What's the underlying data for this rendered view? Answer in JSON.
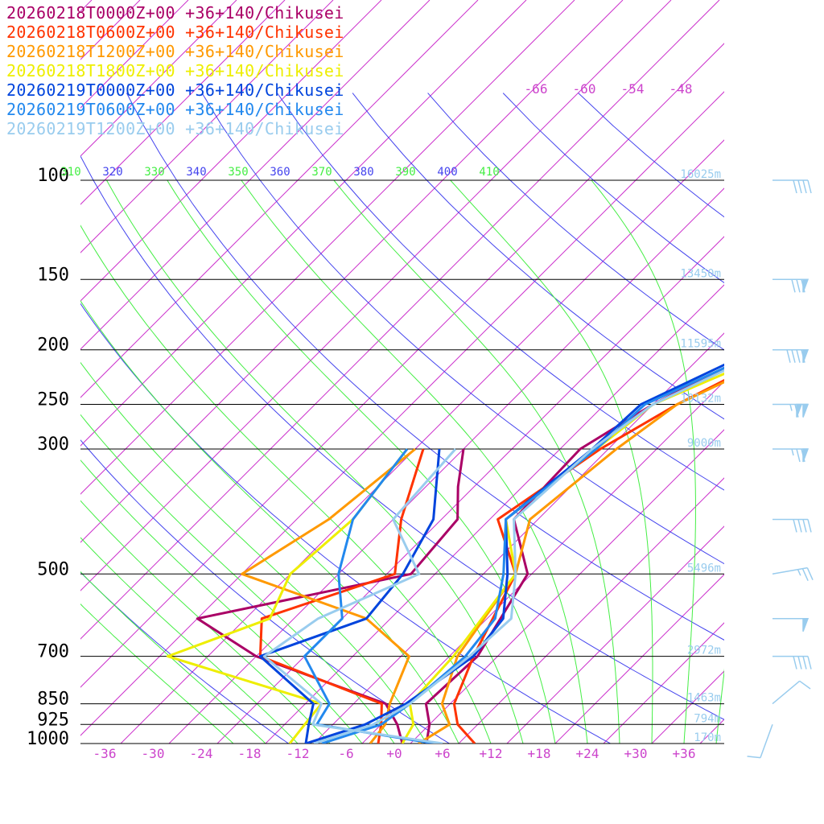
{
  "chart_data": {
    "type": "line",
    "subtype": "skew-t log-p sounding",
    "title": "",
    "xlabel": "",
    "ylabel": "",
    "pressure_levels": [
      100,
      150,
      200,
      250,
      300,
      500,
      700,
      850,
      925,
      1000
    ],
    "pressure_labels": [
      "100",
      "150",
      "200",
      "250",
      "300",
      "500",
      "700",
      "850",
      "925",
      "1000"
    ],
    "height_labels": [
      "16025m",
      "13450m",
      "11595m",
      "10132m",
      "9000m",
      "5496m",
      "2972m",
      "1463m",
      "794m",
      "170m"
    ],
    "temperature_ticks": [
      "-36",
      "-30",
      "-24",
      "-18",
      "-12",
      "-6",
      "+0",
      "+6",
      "+12",
      "+18",
      "+24",
      "+30",
      "+36"
    ],
    "upper_temperature_labels": [
      "-66",
      "-60",
      "-54",
      "-48"
    ],
    "theta_labels": [
      "310",
      "320",
      "330",
      "340",
      "350",
      "360",
      "370",
      "380",
      "390",
      "400",
      "410"
    ],
    "xlim": [
      -39,
      40
    ],
    "ylim": [
      1000,
      100
    ],
    "series": [
      {
        "name": "20260218T0000Z+00 +36+140/Chikusei",
        "color": "#aa0066",
        "temperature": [
          [
            1000,
            4
          ],
          [
            925,
            2
          ],
          [
            850,
            -1
          ],
          [
            700,
            -0.5
          ],
          [
            500,
            -4.5
          ],
          [
            400,
            -13
          ],
          [
            300,
            -13.5
          ],
          [
            250,
            -10
          ],
          [
            200,
            -3.5
          ],
          [
            150,
            -1.5
          ],
          [
            100,
            7
          ]
        ],
        "dewpoint": [
          [
            1000,
            1
          ],
          [
            925,
            -2
          ],
          [
            850,
            -6
          ],
          [
            700,
            -28
          ],
          [
            600,
            -40
          ],
          [
            500,
            -19
          ],
          [
            400,
            -20
          ],
          [
            350,
            -24
          ],
          [
            300,
            -28
          ]
        ]
      },
      {
        "name": "20260218T0600Z+00 +36+140/Chikusei",
        "color": "#ff3300",
        "temperature": [
          [
            1000,
            10
          ],
          [
            925,
            5.5
          ],
          [
            850,
            2.5
          ],
          [
            700,
            -1
          ],
          [
            500,
            -6
          ],
          [
            400,
            -15
          ],
          [
            300,
            -11
          ],
          [
            250,
            -7
          ],
          [
            200,
            -0.5
          ],
          [
            150,
            -0.5
          ],
          [
            100,
            8
          ]
        ],
        "dewpoint": [
          [
            1000,
            -2
          ],
          [
            925,
            -4
          ],
          [
            850,
            -6.5
          ],
          [
            700,
            -27.5
          ],
          [
            600,
            -32
          ],
          [
            500,
            -21
          ],
          [
            400,
            -27
          ],
          [
            300,
            -33
          ]
        ]
      },
      {
        "name": "20260218T1200Z+00 +36+140/Chikusei",
        "color": "#ff9900",
        "temperature": [
          [
            1000,
            3
          ],
          [
            925,
            4.5
          ],
          [
            850,
            1
          ],
          [
            700,
            -3
          ],
          [
            500,
            -6
          ],
          [
            400,
            -11
          ],
          [
            300,
            -9
          ],
          [
            250,
            -7
          ],
          [
            200,
            0.5
          ],
          [
            150,
            0
          ],
          [
            100,
            9
          ]
        ],
        "dewpoint": [
          [
            1000,
            -3
          ],
          [
            925,
            -3.5
          ],
          [
            850,
            -5.5
          ],
          [
            700,
            -9
          ],
          [
            600,
            -19
          ],
          [
            500,
            -40
          ],
          [
            400,
            -36
          ],
          [
            300,
            -34
          ]
        ]
      },
      {
        "name": "20260218T1800Z+00 +36+140/Chikusei",
        "color": "#eeee00",
        "temperature": [
          [
            1000,
            1
          ],
          [
            925,
            0
          ],
          [
            850,
            -3
          ],
          [
            700,
            -3.5
          ],
          [
            500,
            -6
          ],
          [
            400,
            -14
          ],
          [
            300,
            -11.5
          ],
          [
            250,
            -10
          ],
          [
            200,
            -1
          ],
          [
            150,
            1
          ],
          [
            100,
            9.5
          ]
        ],
        "dewpoint": [
          [
            1000,
            -13
          ],
          [
            925,
            -13.5
          ],
          [
            850,
            -14
          ],
          [
            700,
            -39
          ],
          [
            600,
            -31
          ],
          [
            500,
            -34
          ],
          [
            400,
            -33
          ],
          [
            300,
            -35
          ]
        ]
      },
      {
        "name": "20260219T0000Z+00 +36+140/Chikusei",
        "color": "#0044dd",
        "temperature": [
          [
            1000,
            -11
          ],
          [
            925,
            -6
          ],
          [
            850,
            -3.5
          ],
          [
            700,
            -1
          ],
          [
            600,
            -2
          ],
          [
            500,
            -7
          ],
          [
            400,
            -14
          ],
          [
            300,
            -12
          ],
          [
            250,
            -11.5
          ],
          [
            200,
            -4
          ],
          [
            150,
            0.5
          ],
          [
            100,
            8.5
          ]
        ],
        "dewpoint": [
          [
            1000,
            -11
          ],
          [
            925,
            -13
          ],
          [
            850,
            -15
          ],
          [
            700,
            -27.5
          ],
          [
            600,
            -19
          ],
          [
            500,
            -20
          ],
          [
            400,
            -23
          ],
          [
            300,
            -31
          ]
        ]
      },
      {
        "name": "20260219T0600Z+00 +36+140/Chikusei",
        "color": "#2288ee",
        "temperature": [
          [
            1000,
            -9
          ],
          [
            925,
            -4
          ],
          [
            850,
            -3
          ],
          [
            700,
            -2
          ],
          [
            600,
            -3
          ],
          [
            500,
            -7.5
          ],
          [
            400,
            -14
          ],
          [
            300,
            -11.5
          ],
          [
            250,
            -11
          ],
          [
            200,
            -3
          ],
          [
            150,
            0
          ],
          [
            100,
            8.5
          ]
        ],
        "dewpoint": [
          [
            1000,
            5
          ],
          [
            925,
            -12
          ],
          [
            850,
            -13
          ],
          [
            700,
            -22
          ],
          [
            600,
            -22
          ],
          [
            500,
            -28
          ],
          [
            400,
            -33
          ],
          [
            300,
            -35
          ]
        ]
      },
      {
        "name": "20260219T1200Z+00 +36+140/Chikusei",
        "color": "#99ccee",
        "temperature": [
          [
            1000,
            -10
          ],
          [
            925,
            -5
          ],
          [
            850,
            -3
          ],
          [
            700,
            -1.5
          ],
          [
            600,
            -1
          ],
          [
            500,
            -6
          ],
          [
            400,
            -13
          ],
          [
            300,
            -12
          ],
          [
            250,
            -10
          ],
          [
            200,
            -2.5
          ],
          [
            150,
            1
          ],
          [
            100,
            9.5
          ]
        ],
        "dewpoint": [
          [
            1000,
            6
          ],
          [
            925,
            -12.5
          ],
          [
            850,
            -14
          ],
          [
            700,
            -27
          ],
          [
            600,
            -25
          ],
          [
            500,
            -18
          ],
          [
            400,
            -28
          ],
          [
            300,
            -29
          ]
        ]
      }
    ],
    "wind_barbs": [
      {
        "pressure": 100,
        "direction": 270,
        "speed_kt": 40
      },
      {
        "pressure": 150,
        "direction": 270,
        "speed_kt": 80
      },
      {
        "pressure": 200,
        "direction": 270,
        "speed_kt": 90
      },
      {
        "pressure": 250,
        "direction": 270,
        "speed_kt": 115
      },
      {
        "pressure": 300,
        "direction": 270,
        "speed_kt": 75
      },
      {
        "pressure": 400,
        "direction": 270,
        "speed_kt": 40
      },
      {
        "pressure": 500,
        "direction": 260,
        "speed_kt": 25
      },
      {
        "pressure": 600,
        "direction": 270,
        "speed_kt": 50
      },
      {
        "pressure": 700,
        "direction": 270,
        "speed_kt": 40
      },
      {
        "pressure": 850,
        "direction": 230,
        "speed_kt": 10
      },
      {
        "pressure": 925,
        "direction": 20,
        "speed_kt": 10
      }
    ],
    "colors": {
      "isotherm": "#cc33cc",
      "dry_adiabat": "#4444ee",
      "moist_adiabat": "#44ee44",
      "isobar": "#000000",
      "height_label": "#99ccee",
      "tick_label": "#cc44cc"
    }
  }
}
